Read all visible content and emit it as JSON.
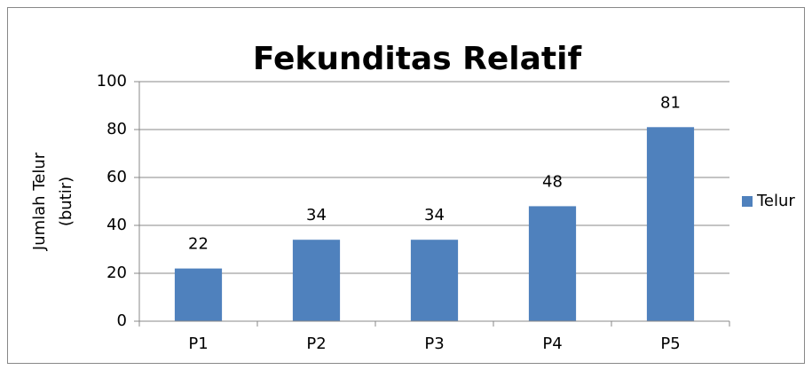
{
  "chart_data": {
    "type": "bar",
    "title": "Fekunditas Relatif",
    "ylabel": [
      "Jumlah Telur",
      "(butir)"
    ],
    "categories": [
      "P1",
      "P2",
      "P3",
      "P4",
      "P5"
    ],
    "series": [
      {
        "name": "Telur",
        "color": "#4f81bd",
        "values": [
          22,
          34,
          34,
          48,
          81
        ]
      }
    ],
    "ylim": [
      0,
      100
    ],
    "yticks": [
      0,
      20,
      40,
      60,
      80,
      100
    ],
    "grid": true,
    "legend": "right"
  }
}
